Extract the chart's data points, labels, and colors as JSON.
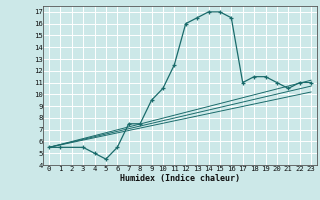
{
  "xlabel": "Humidex (Indice chaleur)",
  "bg_color": "#cce8e8",
  "grid_color": "#ffffff",
  "line_color": "#1a6b6b",
  "xlim": [
    -0.5,
    23.5
  ],
  "ylim": [
    4,
    17.5
  ],
  "xticks": [
    0,
    1,
    2,
    3,
    4,
    5,
    6,
    7,
    8,
    9,
    10,
    11,
    12,
    13,
    14,
    15,
    16,
    17,
    18,
    19,
    20,
    21,
    22,
    23
  ],
  "yticks": [
    4,
    5,
    6,
    7,
    8,
    9,
    10,
    11,
    12,
    13,
    14,
    15,
    16,
    17
  ],
  "curve1_x": [
    0,
    1,
    3,
    4,
    5,
    6,
    7,
    8,
    9,
    10,
    11,
    12,
    13,
    14,
    15,
    16,
    17,
    18,
    19,
    20,
    21,
    22,
    23
  ],
  "curve1_y": [
    5.5,
    5.5,
    5.5,
    5.0,
    4.5,
    5.5,
    7.5,
    7.5,
    9.5,
    10.5,
    12.5,
    16.0,
    16.5,
    17.0,
    17.0,
    16.5,
    11.0,
    11.5,
    11.5,
    11.0,
    10.5,
    11.0,
    11.0
  ],
  "line1_x": [
    0,
    23
  ],
  "line1_y": [
    5.5,
    11.2
  ],
  "line2_x": [
    0,
    23
  ],
  "line2_y": [
    5.5,
    10.7
  ],
  "line3_x": [
    0,
    23
  ],
  "line3_y": [
    5.5,
    10.2
  ]
}
